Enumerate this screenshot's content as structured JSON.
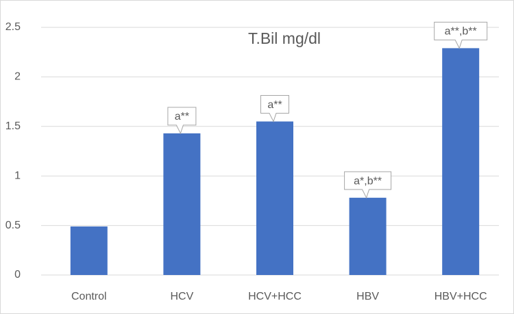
{
  "chart_data": {
    "type": "bar",
    "title": "T.Bil  mg/dl",
    "categories": [
      "Control",
      "HCV",
      "HCV+HCC",
      "HBV",
      "HBV+HCC"
    ],
    "values": [
      0.49,
      1.43,
      1.55,
      0.78,
      2.29
    ],
    "annotations": [
      null,
      "a**",
      "a**",
      "a*,b**",
      "a**,b**"
    ],
    "color": "#4472c4",
    "ylim": [
      0,
      2.5
    ],
    "yticks": [
      0,
      0.5,
      1,
      1.5,
      2,
      2.5
    ],
    "grid": true
  }
}
